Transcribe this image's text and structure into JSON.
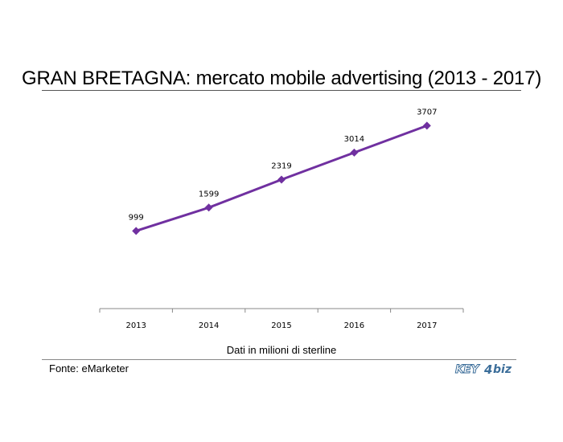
{
  "chart_data": {
    "type": "line",
    "title": "GRAN BRETAGNA: mercato mobile advertising (2013 - 2017)",
    "xlabel": "Dati in milioni di sterline",
    "ylabel": "",
    "categories": [
      "2013",
      "2014",
      "2015",
      "2016",
      "2017"
    ],
    "series": [
      {
        "values": [
          999,
          1599,
          2319,
          3014,
          3707
        ]
      }
    ],
    "data_labels": [
      "999",
      "1599",
      "2319",
      "3014",
      "3707"
    ],
    "ylim": [
      -1000,
      4500
    ],
    "grid": false,
    "legend": "none",
    "marker": "diamond"
  },
  "source": "Fonte: eMarketer",
  "logo": {
    "key": "KEY",
    "four": "4",
    "biz": "biz"
  },
  "colors": {
    "series": "#7030a0",
    "axis": "#888888",
    "logo": "#3c6e9a"
  }
}
